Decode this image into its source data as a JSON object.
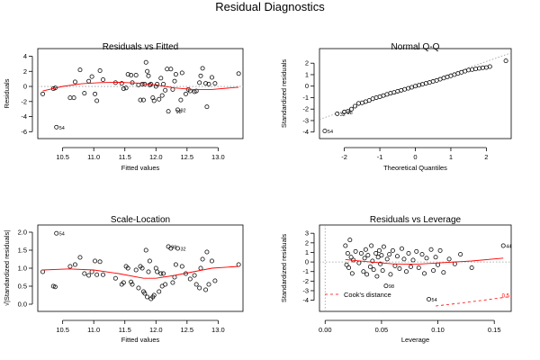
{
  "figure": {
    "title": "Residual Diagnostics"
  },
  "chart_data": [
    {
      "id": "rvf",
      "type": "scatter",
      "title": "Residuals vs Fitted",
      "xlabel": "Fitted values",
      "ylabel": "Residuals",
      "xlim": [
        10.1,
        13.4
      ],
      "ylim": [
        -6.2,
        4.3
      ],
      "xticks": [
        10.5,
        11.0,
        11.5,
        12.0,
        12.5,
        13.0
      ],
      "xtick_labels": [
        "10.5",
        "11.0",
        "11.5",
        "12.0",
        "12.5",
        "13.0"
      ],
      "yticks": [
        -6,
        -4,
        -2,
        0,
        2,
        4
      ],
      "ytick_labels": [
        "-6",
        "-4",
        "-2",
        "0",
        "2",
        "4"
      ],
      "ref_y": 0,
      "grid": false,
      "points": [
        [
          10.18,
          -1.0
        ],
        [
          10.35,
          -0.3
        ],
        [
          10.38,
          -0.2
        ],
        [
          10.4,
          -5.4
        ],
        [
          10.62,
          -1.5
        ],
        [
          10.68,
          -1.5
        ],
        [
          10.7,
          0.6
        ],
        [
          10.78,
          2.2
        ],
        [
          10.85,
          -0.9
        ],
        [
          10.92,
          0.7
        ],
        [
          10.97,
          1.3
        ],
        [
          11.02,
          -1.0
        ],
        [
          11.05,
          -1.9
        ],
        [
          11.1,
          2.1
        ],
        [
          11.15,
          0.9
        ],
        [
          11.35,
          0.5
        ],
        [
          11.45,
          0.4
        ],
        [
          11.48,
          -0.3
        ],
        [
          11.52,
          -0.2
        ],
        [
          11.55,
          1.6
        ],
        [
          11.6,
          1.5
        ],
        [
          11.62,
          0.5
        ],
        [
          11.68,
          1.5
        ],
        [
          11.72,
          0.2
        ],
        [
          11.75,
          -1.8
        ],
        [
          11.78,
          0.3
        ],
        [
          11.8,
          -1.8
        ],
        [
          11.82,
          0.3
        ],
        [
          11.84,
          3.2
        ],
        [
          11.86,
          2.0
        ],
        [
          11.88,
          1.4
        ],
        [
          11.9,
          0.2
        ],
        [
          11.92,
          0.3
        ],
        [
          11.95,
          -1.5
        ],
        [
          11.97,
          -1.9
        ],
        [
          12.0,
          0.0
        ],
        [
          12.02,
          0.3
        ],
        [
          12.05,
          -1.7
        ],
        [
          12.08,
          1.1
        ],
        [
          12.1,
          -1.2
        ],
        [
          12.12,
          0.3
        ],
        [
          12.15,
          -0.5
        ],
        [
          12.18,
          2.3
        ],
        [
          12.2,
          -3.3
        ],
        [
          12.24,
          2.3
        ],
        [
          12.27,
          -0.4
        ],
        [
          12.3,
          0.7
        ],
        [
          12.32,
          1.6
        ],
        [
          12.35,
          -3.1
        ],
        [
          12.4,
          -1.8
        ],
        [
          12.42,
          1.8
        ],
        [
          12.48,
          -1.0
        ],
        [
          12.52,
          -0.4
        ],
        [
          12.55,
          -0.6
        ],
        [
          12.62,
          -0.7
        ],
        [
          12.65,
          -0.6
        ],
        [
          12.7,
          0.5
        ],
        [
          12.72,
          1.4
        ],
        [
          12.75,
          2.4
        ],
        [
          12.8,
          0.4
        ],
        [
          12.82,
          -2.7
        ],
        [
          12.85,
          0.3
        ],
        [
          12.9,
          1.2
        ],
        [
          12.95,
          0.4
        ],
        [
          13.33,
          1.7
        ]
      ],
      "smooth": [
        [
          10.18,
          -0.6
        ],
        [
          10.5,
          0.0
        ],
        [
          10.8,
          0.35
        ],
        [
          11.1,
          0.5
        ],
        [
          11.4,
          0.55
        ],
        [
          11.7,
          0.45
        ],
        [
          12.0,
          0.2
        ],
        [
          12.3,
          -0.2
        ],
        [
          12.6,
          -0.4
        ],
        [
          12.9,
          -0.4
        ],
        [
          13.33,
          -0.1
        ]
      ],
      "annotations": [
        {
          "x": 10.4,
          "y": -5.4,
          "text": "54"
        },
        {
          "x": 12.28,
          "y": -3.3,
          "text": "98"
        },
        {
          "x": 12.35,
          "y": -3.1,
          "text": "92"
        }
      ]
    },
    {
      "id": "qq",
      "type": "scatter",
      "title": "Normal Q-Q",
      "xlabel": "Theoretical Quantiles",
      "ylabel": "Standardized residuals",
      "xlim": [
        -2.7,
        2.7
      ],
      "ylim": [
        -4.1,
        2.8
      ],
      "xticks": [
        -2,
        -1,
        0,
        1,
        2
      ],
      "xtick_labels": [
        "-2",
        "-1",
        "0",
        "1",
        "2"
      ],
      "yticks": [
        -4,
        -3,
        -2,
        -1,
        0,
        1,
        2
      ],
      "ytick_labels": [
        "-4",
        "-3",
        "-2",
        "-1",
        "0",
        "1",
        "2"
      ],
      "ref_line": [
        [
          -2.7,
          -2.9
        ],
        [
          2.7,
          2.9
        ]
      ],
      "grid": false,
      "points": [
        [
          -2.55,
          -3.9
        ],
        [
          -2.2,
          -2.4
        ],
        [
          -2.0,
          -2.25
        ],
        [
          -1.9,
          -2.2
        ],
        [
          -1.8,
          -2.0
        ],
        [
          -1.7,
          -1.75
        ],
        [
          -1.6,
          -1.5
        ],
        [
          -1.5,
          -1.45
        ],
        [
          -1.4,
          -1.35
        ],
        [
          -1.3,
          -1.25
        ],
        [
          -1.2,
          -1.1
        ],
        [
          -1.1,
          -1.0
        ],
        [
          -1.0,
          -0.92
        ],
        [
          -0.9,
          -0.82
        ],
        [
          -0.8,
          -0.72
        ],
        [
          -0.7,
          -0.62
        ],
        [
          -0.6,
          -0.55
        ],
        [
          -0.5,
          -0.45
        ],
        [
          -0.4,
          -0.37
        ],
        [
          -0.3,
          -0.28
        ],
        [
          -0.2,
          -0.19
        ],
        [
          -0.1,
          -0.1
        ],
        [
          0.0,
          0.0
        ],
        [
          0.1,
          0.08
        ],
        [
          0.2,
          0.16
        ],
        [
          0.3,
          0.24
        ],
        [
          0.4,
          0.32
        ],
        [
          0.5,
          0.42
        ],
        [
          0.6,
          0.5
        ],
        [
          0.7,
          0.6
        ],
        [
          0.8,
          0.7
        ],
        [
          0.9,
          0.8
        ],
        [
          1.0,
          0.9
        ],
        [
          1.1,
          1.0
        ],
        [
          1.2,
          1.1
        ],
        [
          1.3,
          1.2
        ],
        [
          1.4,
          1.3
        ],
        [
          1.5,
          1.4
        ],
        [
          1.6,
          1.45
        ],
        [
          1.7,
          1.5
        ],
        [
          1.8,
          1.55
        ],
        [
          1.9,
          1.6
        ],
        [
          2.0,
          1.62
        ],
        [
          2.1,
          1.7
        ],
        [
          2.55,
          2.2
        ]
      ],
      "annotations": [
        {
          "x": -2.55,
          "y": -3.9,
          "text": "54"
        },
        {
          "x": -2.2,
          "y": -2.4,
          "text": "32"
        },
        {
          "x": -2.0,
          "y": -2.25,
          "text": "98"
        }
      ]
    },
    {
      "id": "sl",
      "type": "scatter",
      "title": "Scale-Location",
      "xlabel": "Fitted values",
      "ylabel": "√|Standardized residuals|",
      "xlim": [
        10.1,
        13.4
      ],
      "ylim": [
        -0.05,
        2.05
      ],
      "xticks": [
        10.5,
        11.0,
        11.5,
        12.0,
        12.5,
        13.0
      ],
      "xtick_labels": [
        "10.5",
        "11.0",
        "11.5",
        "12.0",
        "12.5",
        "13.0"
      ],
      "yticks": [
        0.0,
        0.5,
        1.0,
        1.5,
        2.0
      ],
      "ytick_labels": [
        "0.0",
        "0.5",
        "1.0",
        "1.5",
        "2.0"
      ],
      "grid": false,
      "points": [
        [
          10.18,
          0.9
        ],
        [
          10.35,
          0.5
        ],
        [
          10.4,
          1.97
        ],
        [
          10.38,
          0.48
        ],
        [
          10.62,
          1.05
        ],
        [
          10.7,
          1.1
        ],
        [
          10.78,
          1.3
        ],
        [
          10.85,
          0.85
        ],
        [
          10.92,
          0.8
        ],
        [
          10.97,
          0.9
        ],
        [
          11.02,
          1.2
        ],
        [
          11.05,
          0.82
        ],
        [
          11.1,
          1.18
        ],
        [
          11.15,
          0.82
        ],
        [
          11.35,
          0.72
        ],
        [
          11.45,
          0.55
        ],
        [
          11.48,
          0.6
        ],
        [
          11.52,
          1.05
        ],
        [
          11.55,
          1.0
        ],
        [
          11.6,
          0.62
        ],
        [
          11.62,
          0.55
        ],
        [
          11.68,
          0.95
        ],
        [
          11.72,
          0.45
        ],
        [
          11.75,
          1.05
        ],
        [
          11.78,
          1.0
        ],
        [
          11.8,
          0.35
        ],
        [
          11.82,
          0.3
        ],
        [
          11.84,
          1.5
        ],
        [
          11.86,
          0.2
        ],
        [
          11.88,
          0.9
        ],
        [
          11.9,
          1.2
        ],
        [
          11.92,
          0.15
        ],
        [
          11.95,
          0.2
        ],
        [
          11.97,
          0.25
        ],
        [
          12.0,
          1.0
        ],
        [
          12.02,
          0.9
        ],
        [
          12.05,
          0.35
        ],
        [
          12.08,
          0.85
        ],
        [
          12.1,
          0.5
        ],
        [
          12.12,
          0.85
        ],
        [
          12.15,
          0.55
        ],
        [
          12.2,
          1.6
        ],
        [
          12.24,
          1.55
        ],
        [
          12.27,
          0.6
        ],
        [
          12.3,
          0.75
        ],
        [
          12.32,
          1.1
        ],
        [
          12.35,
          1.55
        ],
        [
          12.42,
          1.05
        ],
        [
          12.48,
          0.85
        ],
        [
          12.55,
          0.7
        ],
        [
          12.62,
          0.8
        ],
        [
          12.65,
          0.55
        ],
        [
          12.7,
          0.45
        ],
        [
          12.72,
          1.0
        ],
        [
          12.75,
          1.25
        ],
        [
          12.8,
          0.4
        ],
        [
          12.82,
          1.45
        ],
        [
          12.85,
          0.55
        ],
        [
          12.9,
          1.2
        ],
        [
          12.95,
          0.65
        ],
        [
          13.33,
          1.1
        ]
      ],
      "smooth": [
        [
          10.18,
          0.95
        ],
        [
          10.6,
          0.98
        ],
        [
          11.0,
          0.95
        ],
        [
          11.4,
          0.85
        ],
        [
          11.8,
          0.72
        ],
        [
          12.0,
          0.72
        ],
        [
          12.3,
          0.8
        ],
        [
          12.6,
          0.9
        ],
        [
          12.9,
          1.0
        ],
        [
          13.33,
          1.05
        ]
      ],
      "annotations": [
        {
          "x": 10.4,
          "y": 1.97,
          "text": "54"
        },
        {
          "x": 12.2,
          "y": 1.6,
          "text": "98"
        },
        {
          "x": 12.35,
          "y": 1.55,
          "text": "32"
        }
      ]
    },
    {
      "id": "rvl",
      "type": "scatter",
      "title": "Residuals vs Leverage",
      "xlabel": "Leverage",
      "ylabel": "Standardized residuals",
      "xlim": [
        -0.005,
        0.165
      ],
      "ylim": [
        -4.6,
        3.3
      ],
      "xticks": [
        0.0,
        0.05,
        0.1,
        0.15
      ],
      "xtick_labels": [
        "0.00",
        "0.05",
        "0.10",
        "0.15"
      ],
      "yticks": [
        -4,
        -3,
        -2,
        -1,
        0,
        1,
        2,
        3
      ],
      "ytick_labels": [
        "-4",
        "-3",
        "-2",
        "-1",
        "0",
        "1",
        "2",
        "3"
      ],
      "ref_y": 0,
      "grid": false,
      "legend": {
        "label": "Cook's distance",
        "position": "bottom-left"
      },
      "cooks_label": "0.5",
      "cooks_curve": [
        [
          0.098,
          -4.6
        ],
        [
          0.12,
          -4.3
        ],
        [
          0.14,
          -4.0
        ],
        [
          0.165,
          -3.6
        ]
      ],
      "points": [
        [
          0.018,
          1.7
        ],
        [
          0.019,
          -0.3
        ],
        [
          0.02,
          0.9
        ],
        [
          0.021,
          -0.6
        ],
        [
          0.022,
          2.3
        ],
        [
          0.023,
          0.5
        ],
        [
          0.024,
          -1.2
        ],
        [
          0.025,
          0.2
        ],
        [
          0.027,
          1.1
        ],
        [
          0.03,
          -0.1
        ],
        [
          0.032,
          0.9
        ],
        [
          0.034,
          -1.0
        ],
        [
          0.035,
          0.4
        ],
        [
          0.036,
          1.3
        ],
        [
          0.037,
          -1.3
        ],
        [
          0.038,
          0.7
        ],
        [
          0.04,
          -0.5
        ],
        [
          0.041,
          1.7
        ],
        [
          0.042,
          0.1
        ],
        [
          0.043,
          -0.8
        ],
        [
          0.045,
          0.9
        ],
        [
          0.046,
          -1.5
        ],
        [
          0.047,
          0.5
        ],
        [
          0.048,
          1.2
        ],
        [
          0.049,
          -0.2
        ],
        [
          0.05,
          0.7
        ],
        [
          0.051,
          -0.9
        ],
        [
          0.052,
          1.6
        ],
        [
          0.054,
          -2.5
        ],
        [
          0.055,
          0.3
        ],
        [
          0.057,
          0.8
        ],
        [
          0.058,
          -1.3
        ],
        [
          0.06,
          1.2
        ],
        [
          0.062,
          -0.4
        ],
        [
          0.064,
          0.6
        ],
        [
          0.066,
          -0.7
        ],
        [
          0.068,
          1.4
        ],
        [
          0.07,
          0.3
        ],
        [
          0.072,
          -1.0
        ],
        [
          0.074,
          0.9
        ],
        [
          0.076,
          -0.5
        ],
        [
          0.078,
          0.2
        ],
        [
          0.081,
          1.1
        ],
        [
          0.083,
          -0.6
        ],
        [
          0.086,
          0.8
        ],
        [
          0.088,
          -1.2
        ],
        [
          0.09,
          0.4
        ],
        [
          0.092,
          -3.9
        ],
        [
          0.094,
          1.3
        ],
        [
          0.096,
          -0.9
        ],
        [
          0.098,
          0.5
        ],
        [
          0.1,
          -0.3
        ],
        [
          0.102,
          1.2
        ],
        [
          0.105,
          -1.1
        ],
        [
          0.11,
          0.3
        ],
        [
          0.115,
          -0.2
        ],
        [
          0.12,
          0.8
        ],
        [
          0.13,
          -0.6
        ],
        [
          0.158,
          1.7
        ]
      ],
      "smooth": [
        [
          0.018,
          0.25
        ],
        [
          0.04,
          0.0
        ],
        [
          0.06,
          -0.2
        ],
        [
          0.08,
          -0.25
        ],
        [
          0.1,
          -0.1
        ],
        [
          0.13,
          0.1
        ],
        [
          0.158,
          0.4
        ]
      ],
      "annotations": [
        {
          "x": 0.158,
          "y": 1.7,
          "text": "44"
        },
        {
          "x": 0.054,
          "y": -2.5,
          "text": "98"
        },
        {
          "x": 0.092,
          "y": -3.9,
          "text": "54"
        }
      ]
    }
  ]
}
